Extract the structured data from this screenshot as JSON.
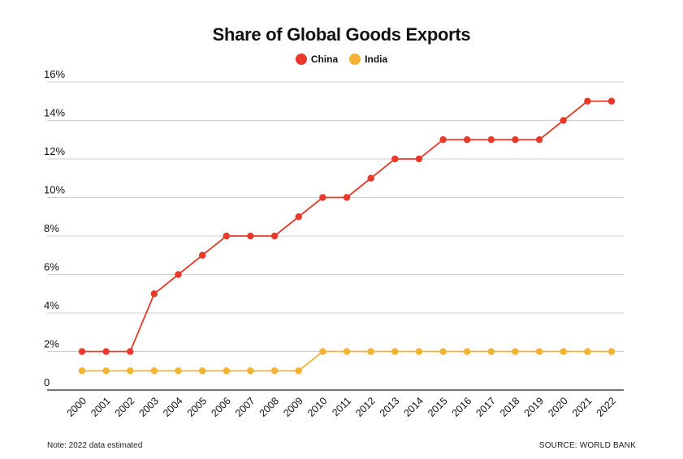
{
  "chart_data": {
    "type": "line",
    "title": "Share of Global Goods Exports",
    "xlabel": "",
    "ylabel": "",
    "categories": [
      "2000",
      "2001",
      "2002",
      "2003",
      "2004",
      "2005",
      "2006",
      "2007",
      "2008",
      "2009",
      "2010",
      "2011",
      "2012",
      "2013",
      "2014",
      "2015",
      "2016",
      "2017",
      "2018",
      "2019",
      "2020",
      "2021",
      "2022"
    ],
    "series": [
      {
        "name": "China",
        "color": "#e8392b",
        "values": [
          2,
          2,
          2,
          5,
          6,
          7,
          8,
          8,
          8,
          9,
          10,
          10,
          11,
          12,
          12,
          13,
          13,
          13,
          13,
          13,
          14,
          15,
          15
        ]
      },
      {
        "name": "India",
        "color": "#f5b335",
        "values": [
          1,
          1,
          1,
          1,
          1,
          1,
          1,
          1,
          1,
          1,
          2,
          2,
          2,
          2,
          2,
          2,
          2,
          2,
          2,
          2,
          2,
          2,
          2
        ]
      }
    ],
    "ylim": [
      0,
      16
    ],
    "y_ticks": [
      0,
      2,
      4,
      6,
      8,
      10,
      12,
      14,
      16
    ],
    "y_tick_labels": [
      "0",
      "2%",
      "4%",
      "6%",
      "8%",
      "10%",
      "12%",
      "14%",
      "16%"
    ],
    "grid": true,
    "legend_position": "top-center"
  },
  "footer": {
    "note": "Note: 2022 data estimated",
    "source": "SOURCE: WORLD BANK"
  }
}
